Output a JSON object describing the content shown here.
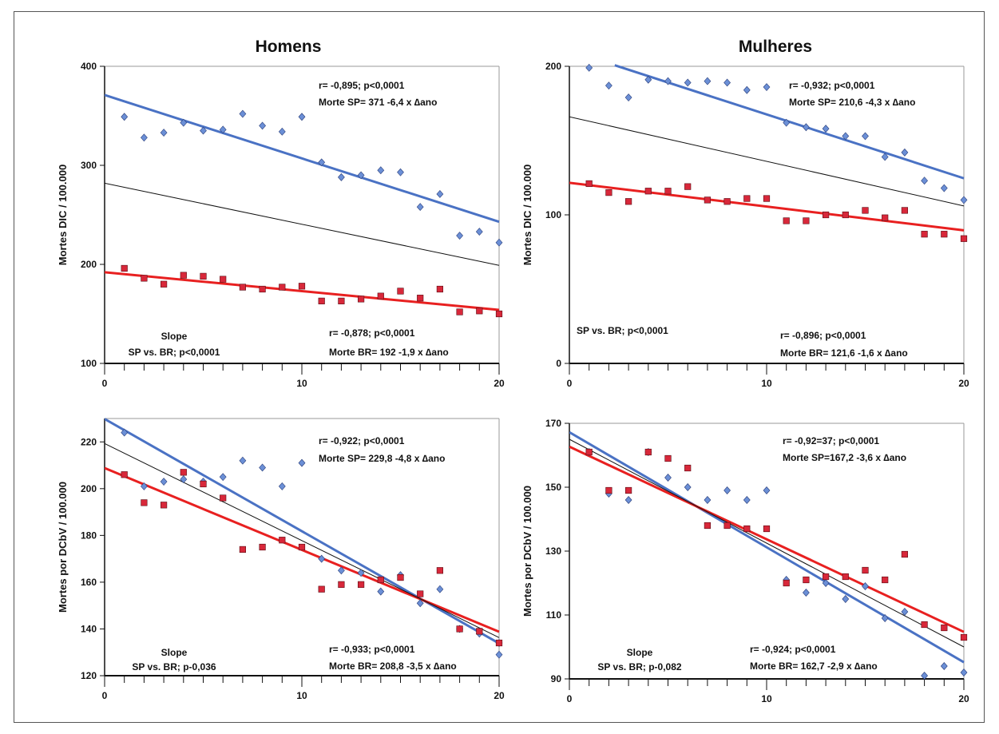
{
  "colors": {
    "sp": "#4a72c4",
    "br": "#e82020",
    "sp_marker": "#6b8fd6",
    "br_marker": "#d8283a",
    "total": "#111111"
  },
  "chart_data": [
    {
      "type": "scatter",
      "title": "Homens",
      "ylabel": "Mortes DIC / 100.000",
      "xlim": [
        0,
        20
      ],
      "ylim": [
        100,
        400
      ],
      "xticks": [
        0,
        10,
        20
      ],
      "yticks": [
        100,
        200,
        300,
        400
      ],
      "series": [
        {
          "marker": "diamond",
          "color": "#6b8fd6",
          "x": [
            1,
            2,
            3,
            4,
            5,
            6,
            7,
            8,
            9,
            10,
            11,
            12,
            13,
            14,
            15,
            16,
            17,
            18,
            19,
            20
          ],
          "y": [
            349,
            328,
            333,
            343,
            335,
            336,
            352,
            340,
            334,
            349,
            303,
            288,
            290,
            295,
            293,
            258,
            271,
            229,
            233,
            222
          ]
        },
        {
          "marker": "square",
          "color": "#d8283a",
          "x": [
            1,
            2,
            3,
            4,
            5,
            6,
            7,
            8,
            9,
            10,
            11,
            12,
            13,
            14,
            15,
            16,
            17,
            18,
            19,
            20
          ],
          "y": [
            196,
            186,
            180,
            189,
            188,
            185,
            177,
            175,
            177,
            178,
            163,
            163,
            165,
            168,
            173,
            166,
            175,
            152,
            153,
            150
          ]
        }
      ],
      "lines": [
        {
          "color": "#4a72c4",
          "width": 3,
          "x": [
            0,
            20
          ],
          "y": [
            371,
            243
          ]
        },
        {
          "color": "#e82020",
          "width": 3,
          "x": [
            0,
            20
          ],
          "y": [
            192,
            154
          ]
        },
        {
          "color": "#111111",
          "width": 1,
          "x": [
            0,
            20
          ],
          "y": [
            282,
            199
          ]
        }
      ],
      "annotations": {
        "sp_line1": "r= -0,895; p<0,0001",
        "sp_line2": "Morte SP= 371 -6,4 x ∆ano",
        "br_line1": "r= -0,878; p<0,0001",
        "br_line2": "Morte BR= 192 -1,9 x ∆ano",
        "slope_line1": "Slope",
        "slope_line2": "SP vs. BR; p<0,0001"
      }
    },
    {
      "type": "scatter",
      "title": "Mulheres",
      "ylabel": "Mortes DIC / 100.000",
      "xlim": [
        0,
        20
      ],
      "ylim": [
        0,
        200
      ],
      "xticks": [
        0,
        10,
        20
      ],
      "yticks": [
        0,
        100,
        200
      ],
      "series": [
        {
          "marker": "diamond",
          "color": "#6b8fd6",
          "x": [
            1,
            2,
            3,
            4,
            5,
            6,
            7,
            8,
            9,
            10,
            11,
            12,
            13,
            14,
            15,
            16,
            17,
            18,
            19,
            20
          ],
          "y": [
            199,
            187,
            179,
            191,
            190,
            189,
            190,
            189,
            184,
            186,
            162,
            159,
            158,
            153,
            153,
            139,
            142,
            123,
            118,
            110
          ]
        },
        {
          "marker": "square",
          "color": "#d8283a",
          "x": [
            1,
            2,
            3,
            4,
            5,
            6,
            7,
            8,
            9,
            10,
            11,
            12,
            13,
            14,
            15,
            16,
            17,
            18,
            19,
            20
          ],
          "y": [
            121,
            115,
            109,
            116,
            116,
            119,
            110,
            109,
            111,
            111,
            96,
            96,
            100,
            100,
            103,
            98,
            103,
            87,
            87,
            84
          ]
        }
      ],
      "lines": [
        {
          "color": "#4a72c4",
          "width": 3,
          "x": [
            2.3,
            20
          ],
          "y": [
            200.7,
            124.6
          ]
        },
        {
          "color": "#e82020",
          "width": 3,
          "x": [
            0,
            20
          ],
          "y": [
            121.6,
            89.6
          ]
        },
        {
          "color": "#111111",
          "width": 1,
          "x": [
            0,
            20
          ],
          "y": [
            166,
            106
          ]
        }
      ],
      "annotations": {
        "sp_line1": "r= -0,932; p<0,0001",
        "sp_line2": "Morte SP= 210,6 -4,3 x ∆ano",
        "br_line1": "r= -0,896; p<0,0001",
        "br_line2": "Morte BR= 121,6 -1,6 x ∆ano",
        "slope_line1": "",
        "slope_line2": "SP vs. BR; p<0,0001"
      }
    },
    {
      "type": "scatter",
      "title": "",
      "ylabel": "Mortes por DCbV / 100.000",
      "xlim": [
        0,
        20
      ],
      "ylim": [
        120,
        230
      ],
      "xticks": [
        0,
        10,
        20
      ],
      "yticks": [
        120,
        140,
        160,
        180,
        200,
        220
      ],
      "series": [
        {
          "marker": "diamond",
          "color": "#6b8fd6",
          "x": [
            1,
            2,
            3,
            4,
            5,
            6,
            7,
            8,
            9,
            10,
            11,
            12,
            13,
            14,
            15,
            16,
            17,
            18,
            19,
            20,
            20
          ],
          "y": [
            224,
            201,
            203,
            204,
            203,
            205,
            212,
            209,
            201,
            211,
            170,
            165,
            164,
            156,
            163,
            151,
            157,
            140,
            138,
            134,
            129
          ]
        },
        {
          "marker": "square",
          "color": "#d8283a",
          "x": [
            1,
            2,
            3,
            4,
            5,
            6,
            7,
            8,
            9,
            10,
            11,
            12,
            13,
            14,
            15,
            16,
            17,
            18,
            19,
            20
          ],
          "y": [
            206,
            194,
            193,
            207,
            202,
            196,
            174,
            175,
            178,
            175,
            157,
            159,
            159,
            161,
            162,
            155,
            165,
            140,
            139,
            134
          ]
        }
      ],
      "lines": [
        {
          "color": "#4a72c4",
          "width": 3,
          "x": [
            0,
            20
          ],
          "y": [
            229.8,
            133.8
          ]
        },
        {
          "color": "#e82020",
          "width": 3,
          "x": [
            0,
            20
          ],
          "y": [
            208.8,
            138.8
          ]
        },
        {
          "color": "#111111",
          "width": 1,
          "x": [
            0,
            20
          ],
          "y": [
            219.3,
            136.3
          ]
        }
      ],
      "annotations": {
        "sp_line1": "r= -0,922; p<0,0001",
        "sp_line2": "Morte SP= 229,8 -4,8 x ∆ano",
        "br_line1": "r= -0,933; p<0,0001",
        "br_line2": "Morte BR= 208,8 -3,5 x ∆ano",
        "slope_line1": "Slope",
        "slope_line2": "SP vs. BR; p-0,036"
      }
    },
    {
      "type": "scatter",
      "title": "",
      "ylabel": "Mortes por DCbV / 100.000",
      "xlim": [
        0,
        20
      ],
      "ylim": [
        90,
        170
      ],
      "xticks": [
        0,
        10,
        20
      ],
      "yticks": [
        90,
        110,
        130,
        150,
        170
      ],
      "series": [
        {
          "marker": "diamond",
          "color": "#6b8fd6",
          "x": [
            1,
            2,
            3,
            4,
            5,
            6,
            7,
            8,
            9,
            10,
            11,
            12,
            13,
            14,
            15,
            16,
            17,
            18,
            19,
            20
          ],
          "y": [
            161,
            148,
            146,
            161,
            153,
            150,
            146,
            149,
            146,
            149,
            121,
            117,
            120,
            115,
            119,
            109,
            111,
            91,
            94,
            92
          ]
        },
        {
          "marker": "square",
          "color": "#d8283a",
          "x": [
            1,
            2,
            3,
            4,
            5,
            6,
            7,
            8,
            9,
            10,
            11,
            12,
            13,
            14,
            15,
            16,
            17,
            18,
            19,
            20
          ],
          "y": [
            161,
            149,
            149,
            161,
            159,
            156,
            138,
            138,
            137,
            137,
            120,
            121,
            122,
            122,
            124,
            121,
            129,
            107,
            106,
            103
          ]
        }
      ],
      "lines": [
        {
          "color": "#4a72c4",
          "width": 3,
          "x": [
            0,
            20
          ],
          "y": [
            167.2,
            95.2
          ]
        },
        {
          "color": "#e82020",
          "width": 3,
          "x": [
            0,
            20
          ],
          "y": [
            162.7,
            104.7
          ]
        },
        {
          "color": "#111111",
          "width": 1,
          "x": [
            0,
            20
          ],
          "y": [
            165,
            100
          ]
        }
      ],
      "annotations": {
        "sp_line1": "r= -0,92=37; p<0,0001",
        "sp_line2": "Morte SP=167,2 -3,6 x ∆ano",
        "br_line1": "r= -0,924; p<0,0001",
        "br_line2": "Morte BR= 162,7 -2,9 x ∆ano",
        "slope_line1": "Slope",
        "slope_line2": "SP vs. BR; p-0,082"
      }
    }
  ]
}
